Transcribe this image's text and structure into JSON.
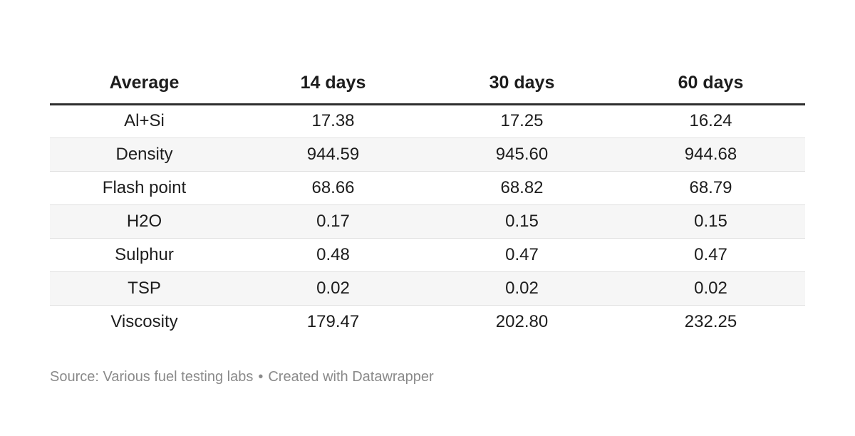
{
  "chart_data": {
    "type": "table",
    "title": "",
    "columns": [
      "Average",
      "14 days",
      "30 days",
      "60 days"
    ],
    "rows": [
      {
        "parameter": "Al+Si",
        "values": [
          17.38,
          17.25,
          16.24
        ]
      },
      {
        "parameter": "Density",
        "values": [
          944.59,
          945.6,
          944.68
        ]
      },
      {
        "parameter": "Flash point",
        "values": [
          68.66,
          68.82,
          68.79
        ]
      },
      {
        "parameter": "H2O",
        "values": [
          0.17,
          0.15,
          0.15
        ]
      },
      {
        "parameter": "Sulphur",
        "values": [
          0.48,
          0.47,
          0.47
        ]
      },
      {
        "parameter": "TSP",
        "values": [
          0.02,
          0.02,
          0.02
        ]
      },
      {
        "parameter": "Viscosity",
        "values": [
          179.47,
          202.8,
          232.25
        ]
      }
    ],
    "source": "Various fuel testing labs",
    "attribution": "Created with Datawrapper",
    "layout": {
      "striped_rows": true,
      "alignment": "center",
      "header_rule": true,
      "grid": "horizontal-only"
    }
  },
  "table": {
    "columns": [
      "Average",
      "14 days",
      "30 days",
      "60 days"
    ],
    "rows": [
      {
        "label": "Al+Si",
        "values": [
          "17.38",
          "17.25",
          "16.24"
        ]
      },
      {
        "label": "Density",
        "values": [
          "944.59",
          "945.60",
          "944.68"
        ]
      },
      {
        "label": "Flash point",
        "values": [
          "68.66",
          "68.82",
          "68.79"
        ]
      },
      {
        "label": "H2O",
        "values": [
          "0.17",
          "0.15",
          "0.15"
        ]
      },
      {
        "label": "Sulphur",
        "values": [
          "0.48",
          "0.47",
          "0.47"
        ]
      },
      {
        "label": "TSP",
        "values": [
          "0.02",
          "0.02",
          "0.02"
        ]
      },
      {
        "label": "Viscosity",
        "values": [
          "179.47",
          "202.80",
          "232.25"
        ]
      }
    ]
  },
  "footer": {
    "source_text": "Source: Various fuel testing labs",
    "separator": "•",
    "attribution": "Created with Datawrapper"
  },
  "colors": {
    "background": "#ffffff",
    "text": "#1d1d1d",
    "header_rule": "#2e2e2e",
    "row_stripe": "#f6f6f6",
    "row_border": "#e0e0e0",
    "footer_text": "#8a8a8a"
  }
}
